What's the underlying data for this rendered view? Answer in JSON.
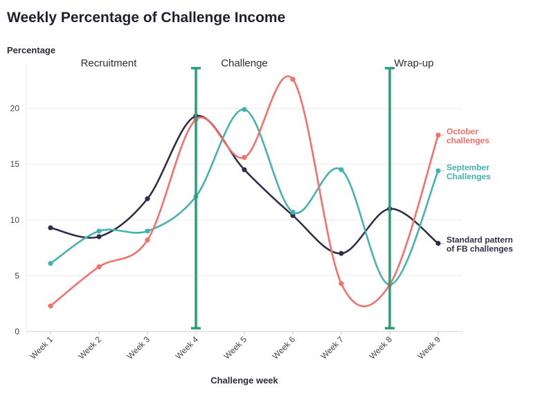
{
  "chart_data": {
    "type": "line",
    "title": "Weekly Percentage of Challenge Income",
    "ylabel": "Percentage",
    "xlabel": "Challenge week",
    "categories": [
      "Week 1",
      "Week 2",
      "Week 3",
      "Week 4",
      "Week 5",
      "Week 6",
      "Week 7",
      "Week 8",
      "Week 9"
    ],
    "ylim": [
      0,
      24
    ],
    "yticks": [
      0,
      5,
      10,
      15,
      20
    ],
    "grid": true,
    "series": [
      {
        "name": "Standard pattern of FB challenges",
        "legend_lines": [
          "Standard pattern",
          "of FB challenges"
        ],
        "color": "#2f2e4a",
        "values": [
          9.3,
          8.5,
          11.9,
          19.3,
          14.5,
          10.4,
          7.0,
          11.0,
          7.9
        ]
      },
      {
        "name": "September Challenges",
        "legend_lines": [
          "September",
          "Challenges"
        ],
        "color": "#45b1b1",
        "values": [
          6.1,
          9.0,
          9.0,
          12.1,
          19.9,
          10.7,
          14.5,
          4.2,
          14.4
        ]
      },
      {
        "name": "October challenges",
        "legend_lines": [
          "October",
          "challenges"
        ],
        "color": "#f4706b",
        "values": [
          2.3,
          5.8,
          8.2,
          19.0,
          15.6,
          22.6,
          4.3,
          4.2,
          17.6
        ]
      }
    ],
    "phases": [
      {
        "label": "Recruitment",
        "at": 2.2
      },
      {
        "label": "Challenge",
        "at": 5.0
      },
      {
        "label": "Wrap-up",
        "at": 8.5
      }
    ],
    "dividers": {
      "positions": [
        4,
        8
      ],
      "range": [
        0.3,
        23.6
      ],
      "color": "#2a9d78"
    }
  }
}
